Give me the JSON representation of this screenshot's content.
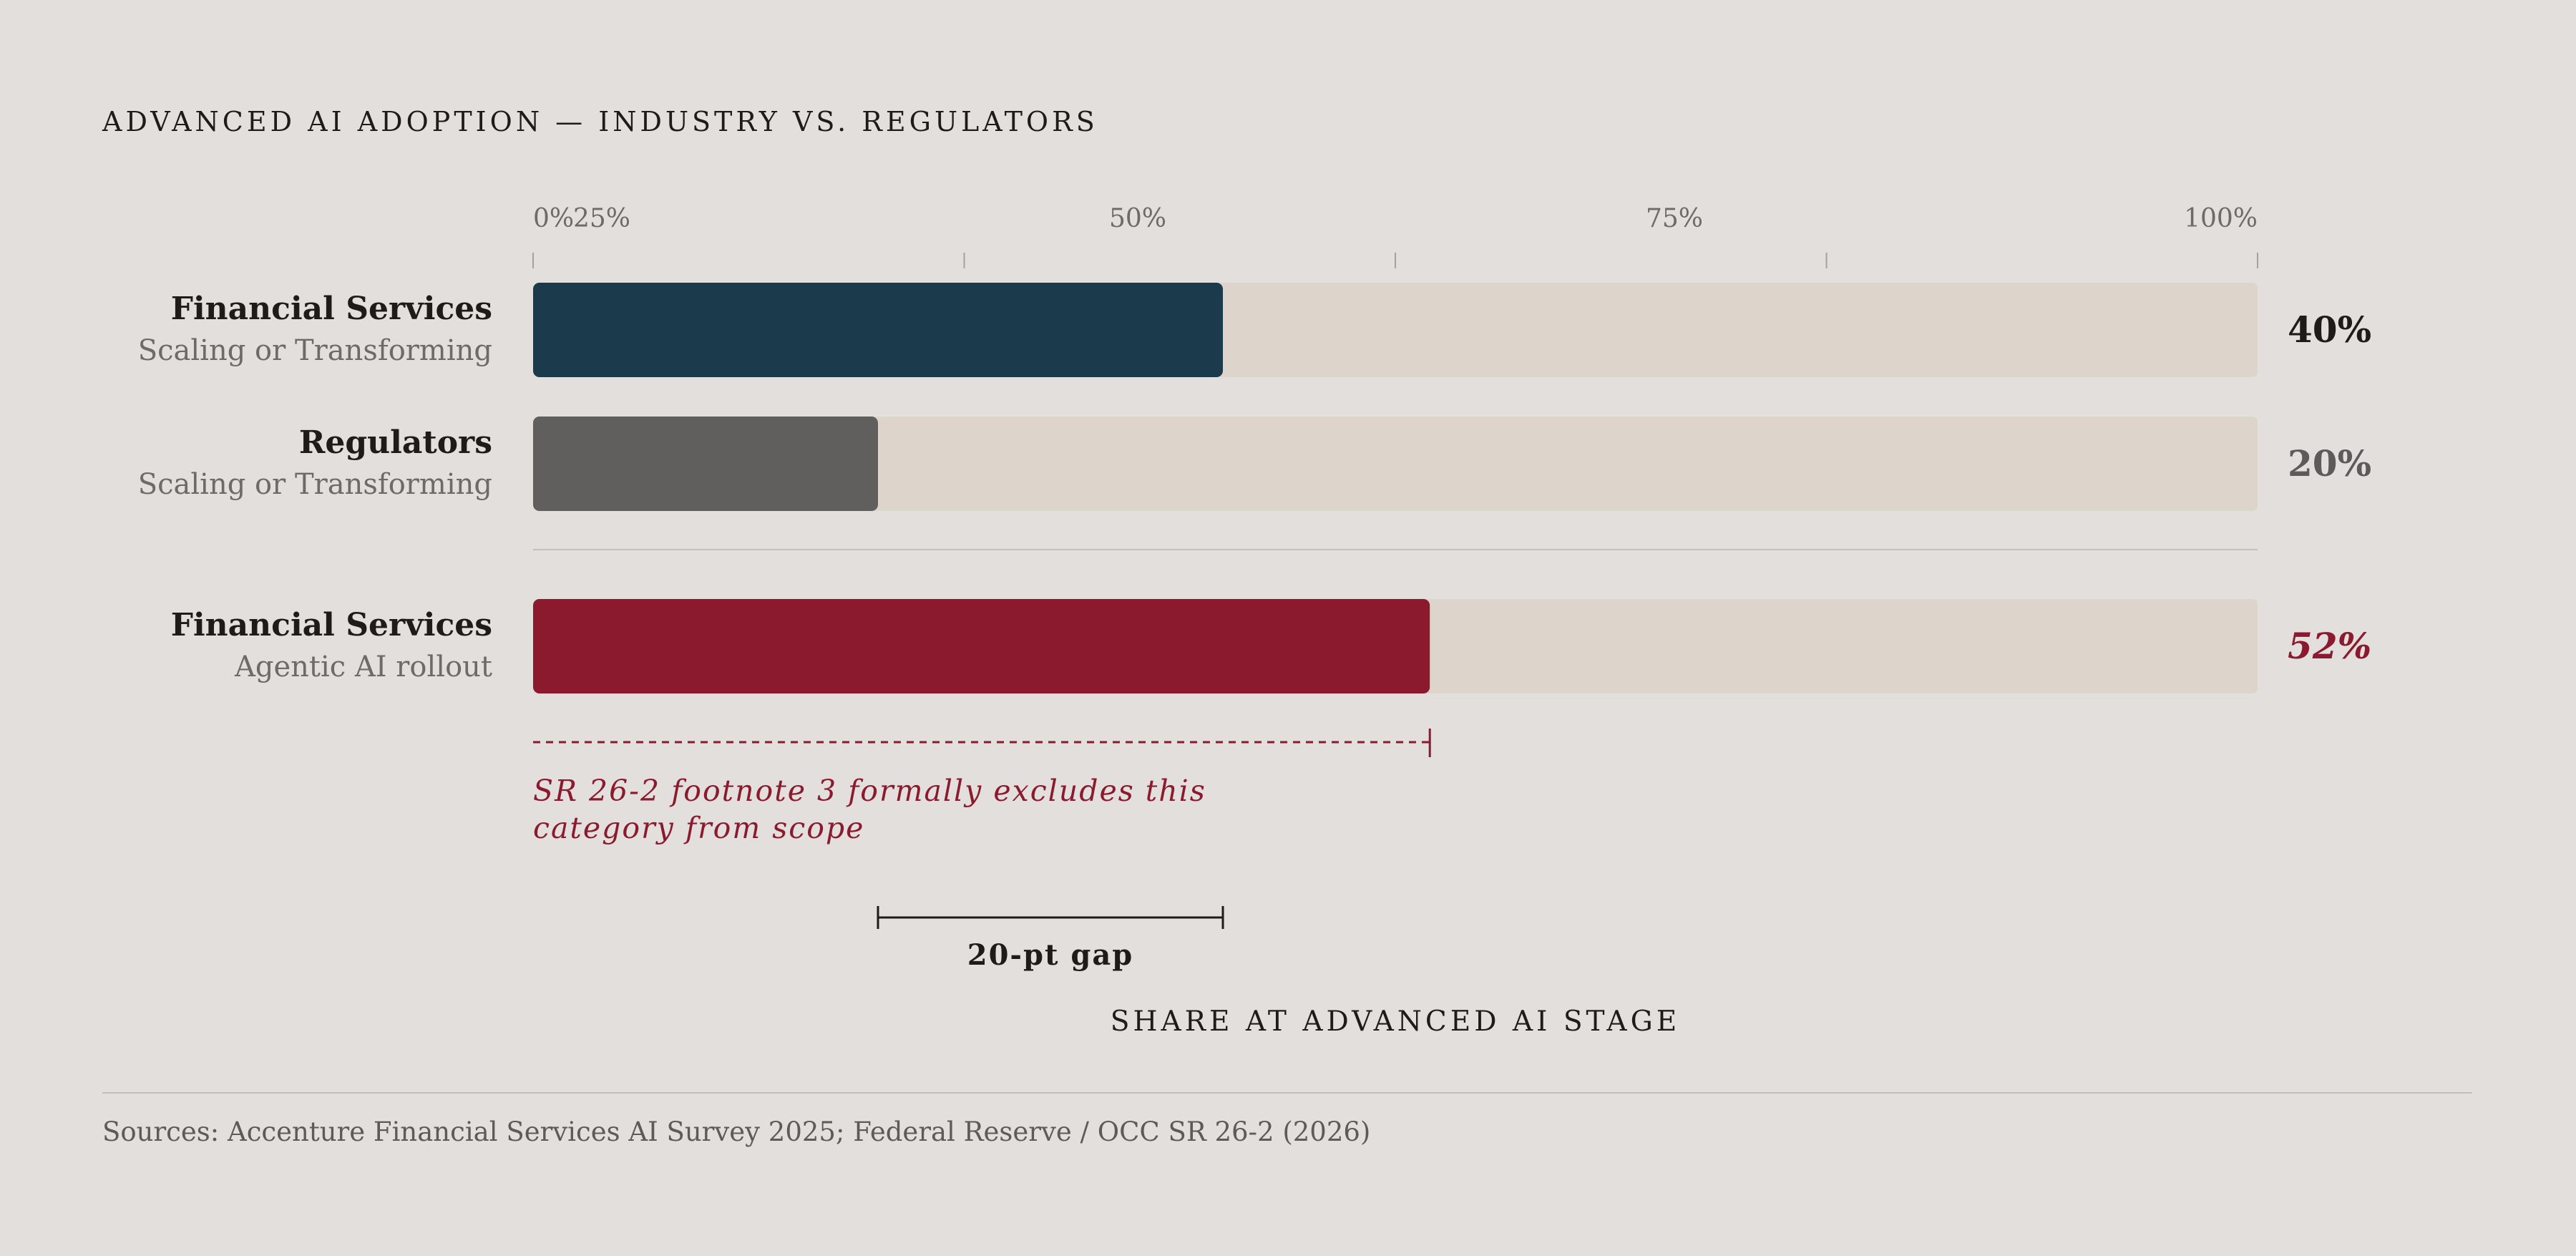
{
  "chart_data": {
    "type": "bar",
    "title": "ADVANCED AI ADOPTION — INDUSTRY VS. REGULATORS",
    "xlabel": "SHARE AT ADVANCED AI STAGE",
    "ylabel": "",
    "xlim": [
      0,
      100
    ],
    "tick_labels": [
      "0%",
      "25%",
      "50%",
      "75%",
      "100%"
    ],
    "grid": false,
    "bars": [
      {
        "name": "Financial Services",
        "sublabel": "Scaling or Transforming",
        "value": 40,
        "value_label": "40%",
        "color": "#1b3a4b",
        "value_color": "#1e1b19"
      },
      {
        "name": "Regulators",
        "sublabel": "Scaling or Transforming",
        "value": 20,
        "value_label": "20%",
        "color": "#605f5d",
        "value_color": "#5c5b59"
      },
      {
        "name": "Financial Services",
        "sublabel": "Agentic AI rollout",
        "value": 52,
        "value_label": "52%",
        "color": "#8b1a2f",
        "value_color": "#8b1a2f"
      }
    ],
    "track_color": "#ddd5cb",
    "annotations": [
      {
        "text_lines": [
          "SR 26-2 footnote 3 formally excludes this",
          "category from scope"
        ],
        "range": [
          0,
          52
        ],
        "color": "#8b1a2f"
      },
      {
        "text": "20-pt gap",
        "range": [
          20,
          40
        ],
        "color": "#1e1b19"
      }
    ],
    "source": "Sources: Accenture Financial Services AI Survey 2025; Federal Reserve / OCC SR 26-2 (2026)"
  }
}
